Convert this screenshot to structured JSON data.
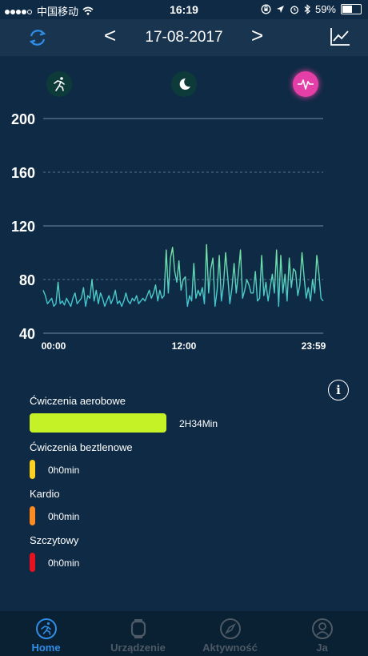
{
  "status": {
    "carrier": "中国移动",
    "time": "16:19",
    "battery": "59%",
    "battery_level": 0.59
  },
  "nav": {
    "date": "17-08-2017",
    "prev": "<",
    "next": ">"
  },
  "chart_data": {
    "type": "line",
    "title": "",
    "xlabel": "",
    "ylabel": "",
    "ylim": [
      40,
      200
    ],
    "yticks": [
      "200",
      "160",
      "120",
      "80",
      "40"
    ],
    "xticks": [
      "00:00",
      "12:00",
      "23:59"
    ],
    "series": [
      {
        "values": [
          72,
          68,
          62,
          64,
          66,
          60,
          62,
          78,
          62,
          64,
          61,
          66,
          63,
          60,
          66,
          70,
          62,
          64,
          66,
          74,
          60,
          68,
          66,
          80,
          64,
          72,
          62,
          70,
          66,
          60,
          64,
          68,
          62,
          66,
          72,
          62,
          64,
          60,
          64,
          70,
          64,
          62,
          66,
          64,
          68,
          62,
          64,
          66,
          64,
          68,
          72,
          66,
          70,
          76,
          64,
          72,
          66,
          68,
          102,
          70,
          96,
          104,
          86,
          78,
          94,
          72,
          80,
          82,
          60,
          68,
          64,
          92,
          66,
          72,
          68,
          74,
          62,
          106,
          70,
          88,
          96,
          60,
          72,
          98,
          64,
          76,
          100,
          82,
          62,
          74,
          92,
          70,
          84,
          102,
          66,
          72,
          80,
          76,
          70,
          70,
          86,
          64,
          66,
          98,
          68,
          78,
          64,
          74,
          84,
          70,
          102,
          60,
          98,
          70,
          84,
          64,
          96,
          74,
          88,
          86,
          68,
          76,
          100,
          82,
          66,
          74,
          64,
          80,
          70,
          98,
          84,
          66,
          64
        ]
      }
    ]
  },
  "activity": {
    "items": [
      {
        "label": "Ćwiczenia aerobowe",
        "value": "2H34Min",
        "color": "#c5f227"
      },
      {
        "label": "Ćwiczenia beztlenowe",
        "value": "0h0min",
        "color": "#ffd21f"
      },
      {
        "label": "Kardio",
        "value": "0h0min",
        "color": "#ff8a1f"
      },
      {
        "label": "Szczytowy",
        "value": "0h0min",
        "color": "#e8121f"
      }
    ]
  },
  "tabs": [
    {
      "label": "Home",
      "icon": "runner-icon"
    },
    {
      "label": "Urządzenie",
      "icon": "watch-icon"
    },
    {
      "label": "Aktywność",
      "icon": "compass-icon"
    },
    {
      "label": "Ja",
      "icon": "profile-icon"
    }
  ]
}
